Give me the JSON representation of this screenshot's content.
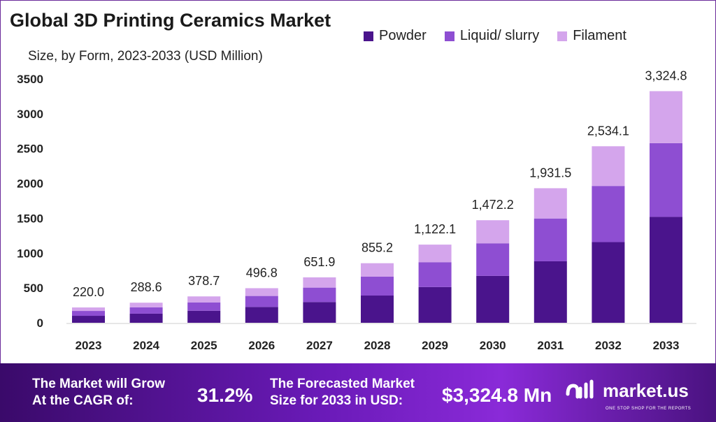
{
  "header": {
    "title": "Global 3D Printing Ceramics Market",
    "subtitle": "Size, by Form, 2023-2033 (USD Million)"
  },
  "colors": {
    "powder": "#4a148c",
    "liquid": "#8e4ed2",
    "filament": "#d4a5ec"
  },
  "chart_data": {
    "type": "bar",
    "stacked": true,
    "categories": [
      "2023",
      "2024",
      "2025",
      "2026",
      "2027",
      "2028",
      "2029",
      "2030",
      "2031",
      "2032",
      "2033"
    ],
    "series": [
      {
        "name": "Powder",
        "values": [
          100,
          131,
          173,
          227,
          298,
          391,
          513,
          673,
          883,
          1158,
          1520
        ]
      },
      {
        "name": "Liquid/ slurry",
        "values": [
          70,
          91,
          120,
          158,
          207,
          272,
          357,
          468,
          614,
          806,
          1058
        ]
      },
      {
        "name": "Filament",
        "values": [
          50,
          66.6,
          85.7,
          111.8,
          146.9,
          192.2,
          252.1,
          331.2,
          434.5,
          570.1,
          746.8
        ]
      }
    ],
    "totals": [
      "220.0",
      "288.6",
      "378.7",
      "496.8",
      "651.9",
      "855.2",
      "1,122.1",
      "1,472.2",
      "1,931.5",
      "2,534.1",
      "3,324.8"
    ],
    "yticks": [
      0,
      500,
      1000,
      1500,
      2000,
      2500,
      3000,
      3500
    ],
    "ylim": [
      0,
      3500
    ],
    "legend_position": "top-right",
    "grid": false
  },
  "banner": {
    "cagr_label": "The Market will Grow\nAt the CAGR of:",
    "cagr_value": "31.2%",
    "forecast_label": "The Forecasted Market\nSize for 2033 in USD:",
    "forecast_value": "$3,324.8 Mn",
    "brand": "market.us",
    "brand_tagline": "ONE STOP SHOP FOR THE REPORTS"
  }
}
